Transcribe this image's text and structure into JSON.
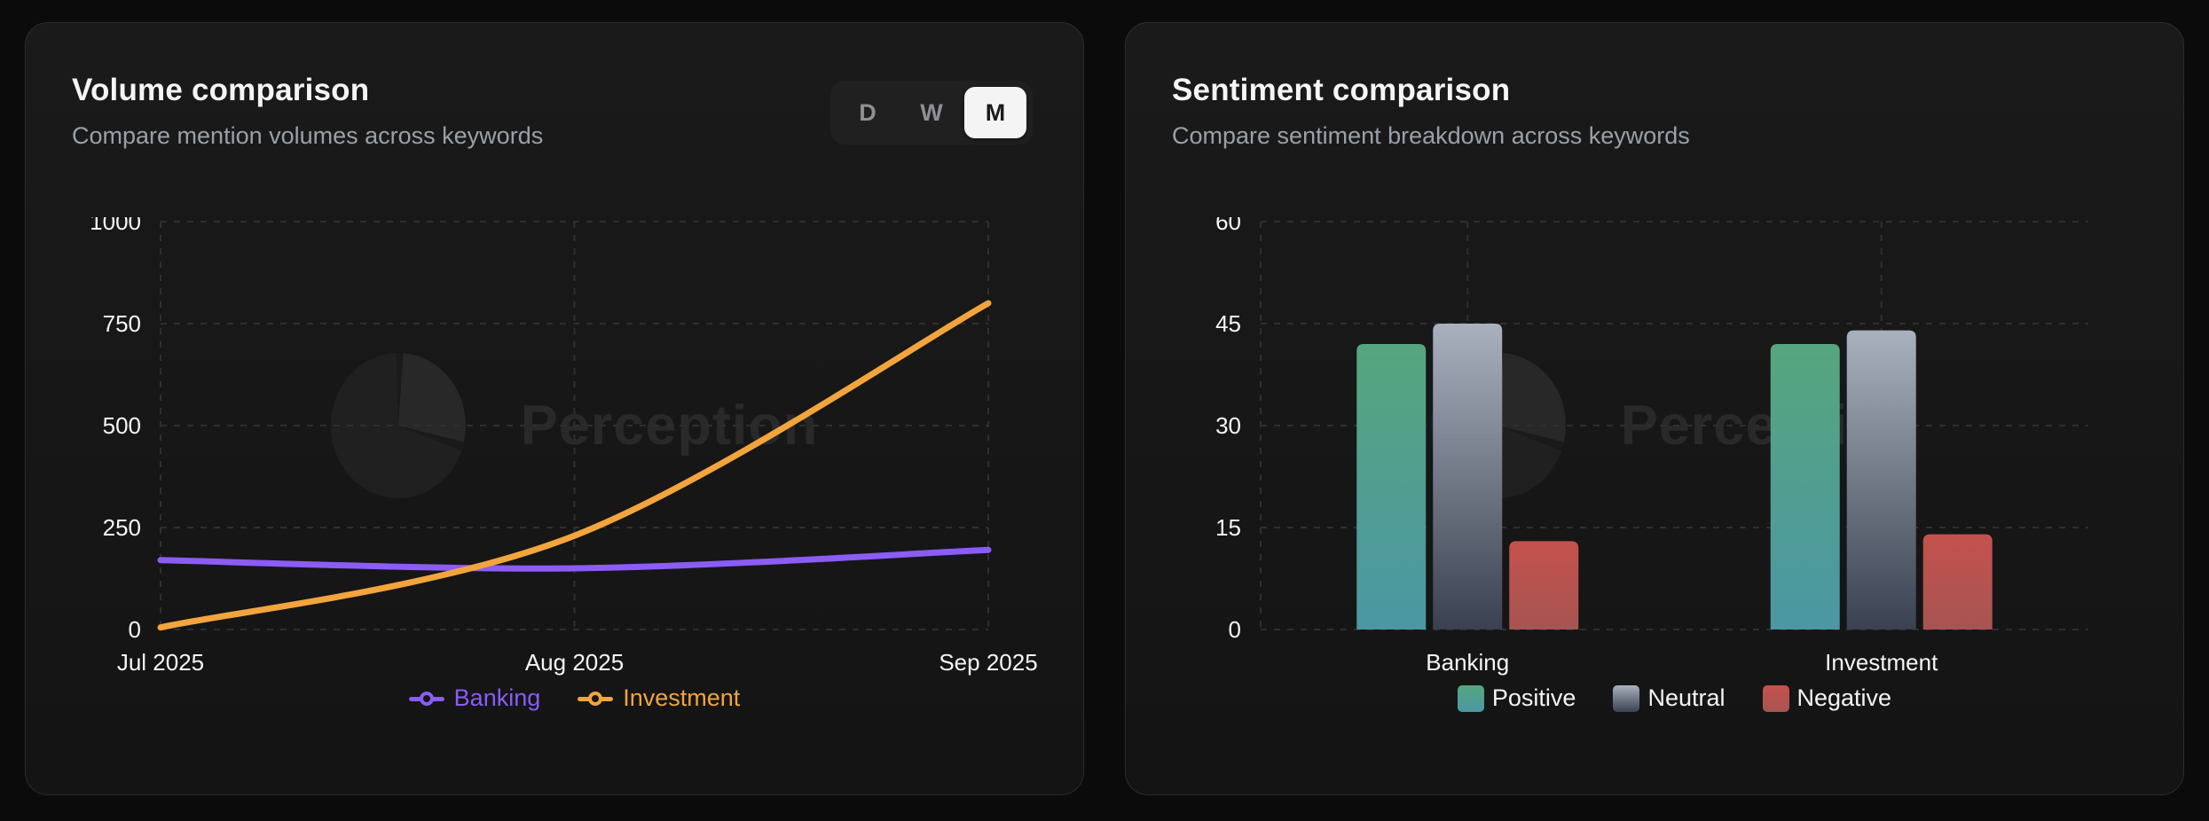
{
  "page_bg": "#0b0b0b",
  "cards": [
    {
      "title": "Volume comparison",
      "subtitle": "Compare mention volumes across keywords",
      "watermark": "Perception",
      "toggle": {
        "options": [
          "D",
          "W",
          "M"
        ],
        "selected": "M"
      }
    },
    {
      "title": "Sentiment comparison",
      "subtitle": "Compare sentiment breakdown across keywords",
      "watermark": "Perception"
    }
  ],
  "chart_data": [
    {
      "type": "line",
      "title": "Volume comparison",
      "x": [
        "Jul 2025",
        "Aug 2025",
        "Sep 2025"
      ],
      "series": [
        {
          "name": "Banking",
          "color": "#8b5cf6",
          "values": [
            170,
            150,
            195
          ]
        },
        {
          "name": "Investment",
          "color": "#f2a43d",
          "values": [
            5,
            230,
            800
          ]
        }
      ],
      "ylim": [
        0,
        1000
      ],
      "yticks": [
        0,
        250,
        500,
        750,
        1000
      ],
      "grid": true,
      "grid_style": "dashed",
      "legend_position": "bottom",
      "line_smoothing": "monotone"
    },
    {
      "type": "bar",
      "title": "Sentiment comparison",
      "categories": [
        "Banking",
        "Investment"
      ],
      "series": [
        {
          "name": "Positive",
          "gradient": [
            "#55a67d",
            "#4b97a4"
          ],
          "values": [
            42,
            42
          ]
        },
        {
          "name": "Neutral",
          "gradient": [
            "#a9b1be",
            "#3a4150"
          ],
          "values": [
            45,
            44
          ]
        },
        {
          "name": "Negative",
          "gradient": [
            "#c5514d",
            "#a65552"
          ],
          "values": [
            13,
            14
          ]
        }
      ],
      "ylim": [
        0,
        60
      ],
      "yticks": [
        0,
        15,
        30,
        45,
        60
      ],
      "grid": true,
      "grid_style": "dashed",
      "legend_position": "bottom"
    }
  ],
  "theme": {
    "tick_color": "#f5f5f7",
    "grid_color": "#2e2e33",
    "toggle_active_bg": "#f4f4f5",
    "toggle_active_text": "#1b1b1d"
  }
}
